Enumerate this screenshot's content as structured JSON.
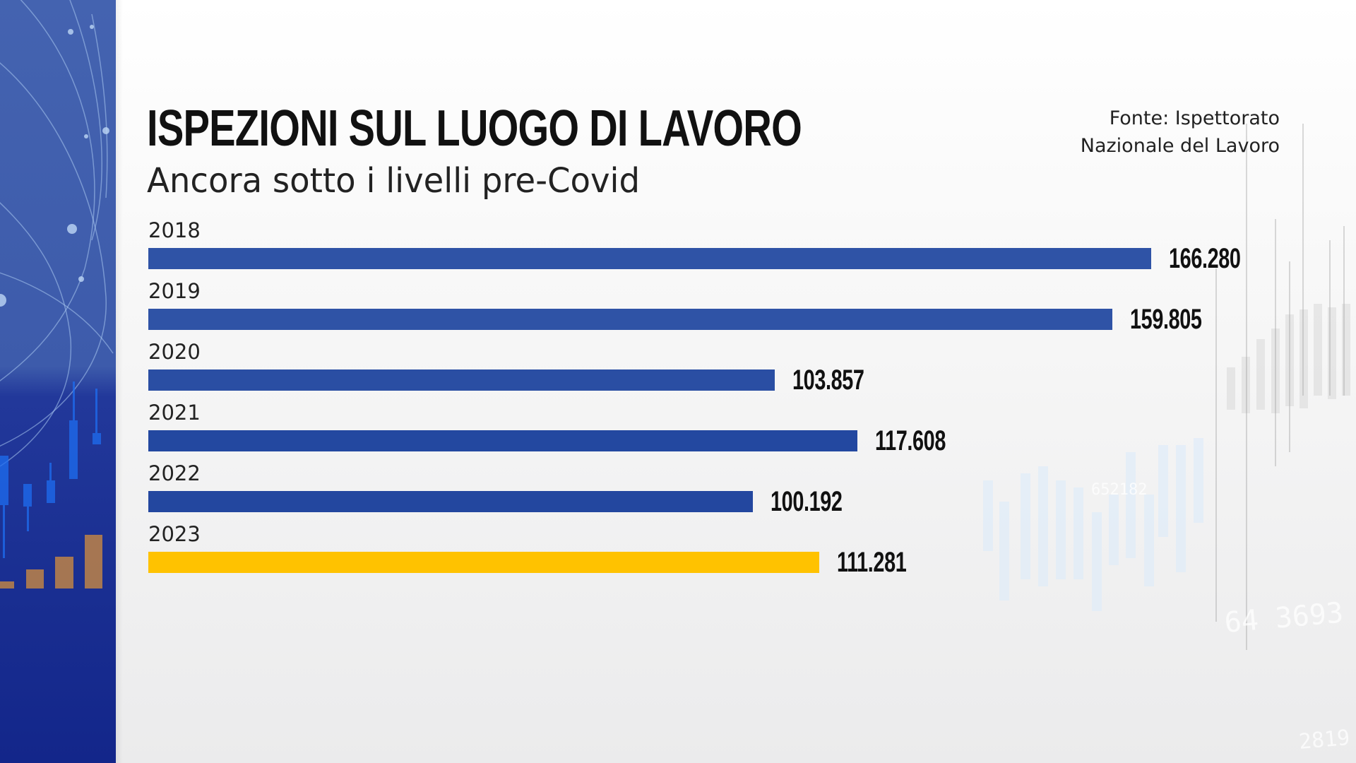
{
  "header": {
    "title": "ISPEZIONI SUL LUOGO DI LAVORO",
    "subtitle": "Ancora sotto i livelli pre-Covid",
    "source_line1": "Fonte: Ispettorato",
    "source_line2": "Nazionale del Lavoro"
  },
  "colors": {
    "bar_default": "#2f53a6",
    "bar_highlight": "#ffc200",
    "panel_blue": "#2a44a0",
    "text": "#111111"
  },
  "chart_data": {
    "type": "bar",
    "orientation": "horizontal",
    "title": "ISPEZIONI SUL LUOGO DI LAVORO",
    "subtitle": "Ancora sotto i livelli pre-Covid",
    "source": "Fonte: Ispettorato Nazionale del Lavoro",
    "categories": [
      "2018",
      "2019",
      "2020",
      "2021",
      "2022",
      "2023"
    ],
    "values": [
      166280,
      159805,
      103857,
      117608,
      100192,
      111281
    ],
    "value_labels": [
      "166.280",
      "159.805",
      "103.857",
      "117.608",
      "100.192",
      "111.281"
    ],
    "highlight": [
      "2023"
    ],
    "xlabel": "",
    "ylabel": "",
    "grid": false,
    "legend": null,
    "xlim": [
      0,
      166280
    ]
  },
  "rows": [
    {
      "year": "2018",
      "value": "166.280",
      "raw": 166280,
      "color": "#2f53a6"
    },
    {
      "year": "2019",
      "value": "159.805",
      "raw": 159805,
      "color": "#2f53a6"
    },
    {
      "year": "2020",
      "value": "103.857",
      "raw": 103857,
      "color": "#2a4ea3"
    },
    {
      "year": "2021",
      "value": "117.608",
      "raw": 117608,
      "color": "#2348a0"
    },
    {
      "year": "2022",
      "value": "100.192",
      "raw": 100192,
      "color": "#23479f"
    },
    {
      "year": "2023",
      "value": "111.281",
      "raw": 111281,
      "color": "#ffc200"
    }
  ]
}
